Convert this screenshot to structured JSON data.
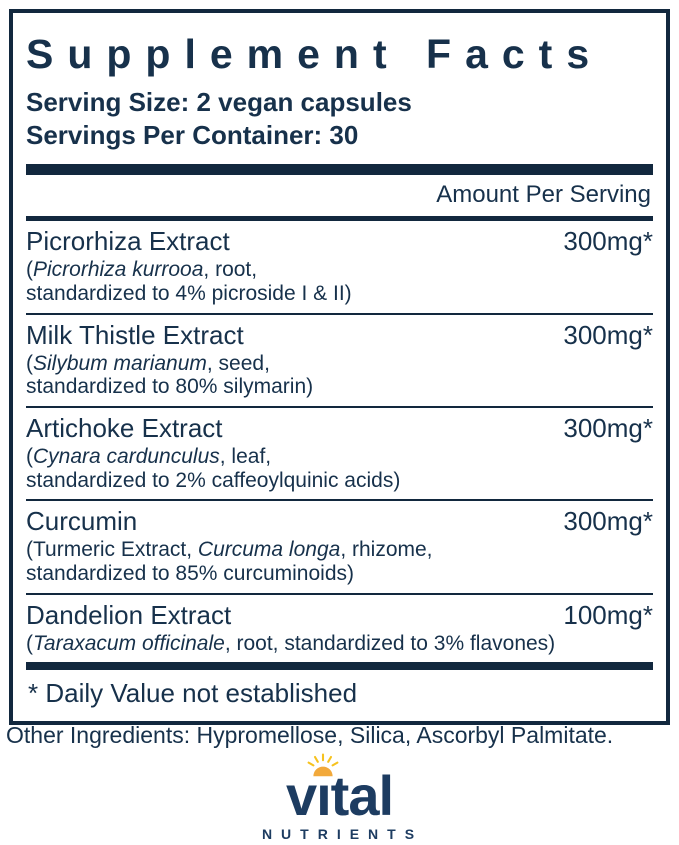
{
  "panel": {
    "title": "Supplement Facts",
    "serving_size": "Serving Size: 2 vegan capsules",
    "servings_per_container": "Servings Per Container: 30",
    "amount_header": "Amount Per Serving",
    "rows": [
      {
        "name": "Picrorhiza Extract",
        "amount": "300mg*",
        "details": [
          [
            {
              "text": "(",
              "italic": false
            },
            {
              "text": "Picrorhiza kurrooa",
              "italic": true
            },
            {
              "text": ", root,",
              "italic": false
            }
          ],
          [
            {
              "text": "standardized to 4% picroside I & II)",
              "italic": false
            }
          ]
        ]
      },
      {
        "name": "Milk Thistle Extract",
        "amount": "300mg*",
        "details": [
          [
            {
              "text": "(",
              "italic": false
            },
            {
              "text": "Silybum marianum",
              "italic": true
            },
            {
              "text": ", seed,",
              "italic": false
            }
          ],
          [
            {
              "text": "standardized to 80% silymarin)",
              "italic": false
            }
          ]
        ]
      },
      {
        "name": "Artichoke Extract",
        "amount": "300mg*",
        "details": [
          [
            {
              "text": "(",
              "italic": false
            },
            {
              "text": "Cynara cardunculus",
              "italic": true
            },
            {
              "text": ", leaf,",
              "italic": false
            }
          ],
          [
            {
              "text": "standardized to 2% caffeoylquinic acids)",
              "italic": false
            }
          ]
        ]
      },
      {
        "name": "Curcumin",
        "amount": "300mg*",
        "details": [
          [
            {
              "text": "(Turmeric Extract, ",
              "italic": false
            },
            {
              "text": "Curcuma longa",
              "italic": true
            },
            {
              "text": ", rhizome,",
              "italic": false
            }
          ],
          [
            {
              "text": "standardized to 85% curcuminoids)",
              "italic": false
            }
          ]
        ]
      },
      {
        "name": "Dandelion Extract",
        "amount": "100mg*",
        "details": [
          [
            {
              "text": "(",
              "italic": false
            },
            {
              "text": "Taraxacum officinale",
              "italic": true
            },
            {
              "text": ", root, standardized to 3% flavones)",
              "italic": false
            }
          ]
        ]
      }
    ],
    "footnote": "* Daily Value not established"
  },
  "other_ingredients": "Other Ingredients: Hypromellose, Silica, Ascorbyl Palmitate.",
  "logo": {
    "wordmark": "vital",
    "wordmark_pre": "v",
    "wordmark_i_dotless": "ı",
    "wordmark_post": "tal",
    "subtext": "NUTRIENTS",
    "sun_icon": "sun-icon"
  },
  "colors": {
    "navy": "#17314b",
    "bar": "#12283e",
    "logo_navy": "#1d3c61",
    "sun_gold": "#F2A93B",
    "ray_gold": "#F6C21E"
  }
}
